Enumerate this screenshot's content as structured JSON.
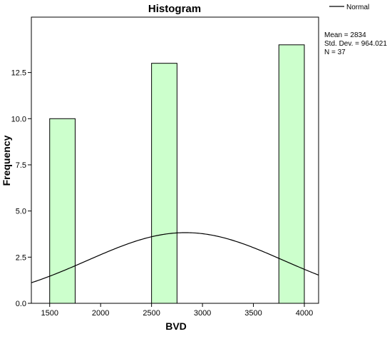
{
  "chart_data": {
    "type": "bar",
    "title": "Histogram",
    "xlabel": "BVD",
    "ylabel": "Frequency",
    "xlim": [
      1320,
      4140
    ],
    "ylim": [
      0,
      15.5
    ],
    "xticks": [
      1500,
      2000,
      2500,
      3000,
      3500,
      4000
    ],
    "yticks": [
      0.0,
      2.5,
      5.0,
      7.5,
      10.0,
      12.5
    ],
    "ytick_labels": [
      "0.0",
      "2.5",
      "5.0",
      "7.5",
      "10.0",
      "12.5"
    ],
    "bin_width": 250,
    "bins": [
      {
        "start": 1500,
        "end": 1750,
        "count": 10
      },
      {
        "start": 2500,
        "end": 2750,
        "count": 13
      },
      {
        "start": 3750,
        "end": 4000,
        "count": 14
      }
    ],
    "normal_curve": {
      "name": "Normal",
      "mean": 2834,
      "std_dev": 964.021,
      "n": 37
    },
    "legend": {
      "label": "Normal",
      "placement": "top-right"
    },
    "stats": [
      "Mean = 2834",
      "Std. Dev. = 964.021",
      "N = 37"
    ],
    "grid": false,
    "colors": {
      "bar_fill": "#ccffcc",
      "bar_stroke": "#000000",
      "curve": "#000000"
    }
  }
}
